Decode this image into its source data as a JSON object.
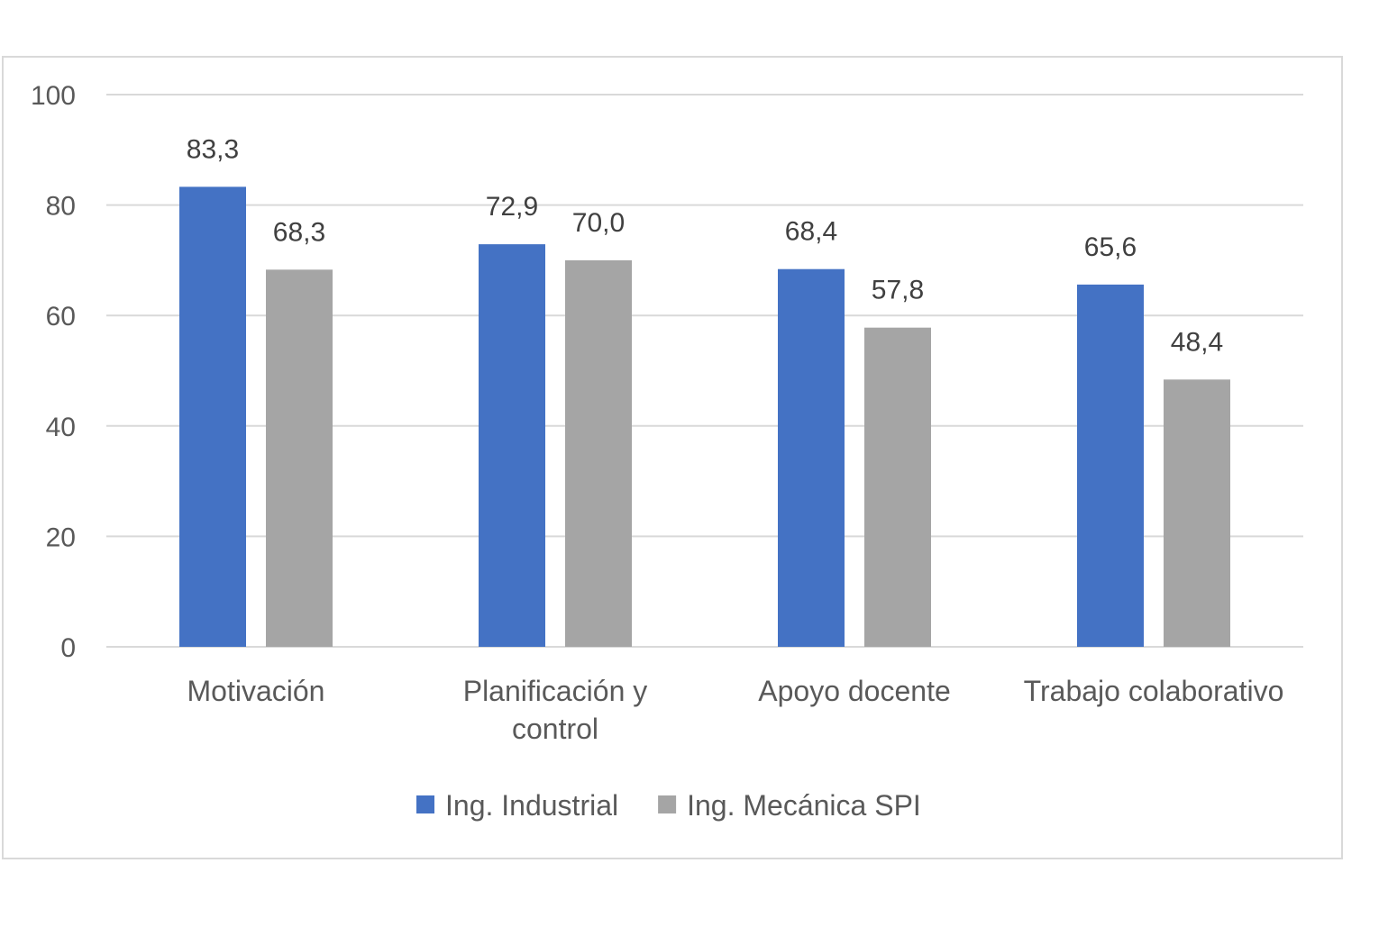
{
  "chart_data": {
    "type": "bar",
    "categories": [
      [
        "Motivación"
      ],
      [
        "Planificación y",
        "control"
      ],
      [
        "Apoyo docente"
      ],
      [
        "Trabajo colaborativo"
      ]
    ],
    "series": [
      {
        "name": "Ing. Industrial",
        "values": [
          83.3,
          72.9,
          68.4,
          65.6
        ],
        "labels": [
          "83,3",
          "72,9",
          "68,4",
          "65,6"
        ],
        "color": "#4472c4"
      },
      {
        "name": "Ing. Mecánica SPI",
        "values": [
          68.3,
          70.0,
          57.8,
          48.4
        ],
        "labels": [
          "68,3",
          "70,0",
          "57,8",
          "48,4"
        ],
        "color": "#a5a5a5"
      }
    ],
    "y_ticks": [
      "0",
      "20",
      "40",
      "60",
      "80",
      "100"
    ],
    "ylim": [
      0,
      100
    ],
    "grid": true,
    "legend": "bottom",
    "gridline_color": "#d9d9d9"
  }
}
